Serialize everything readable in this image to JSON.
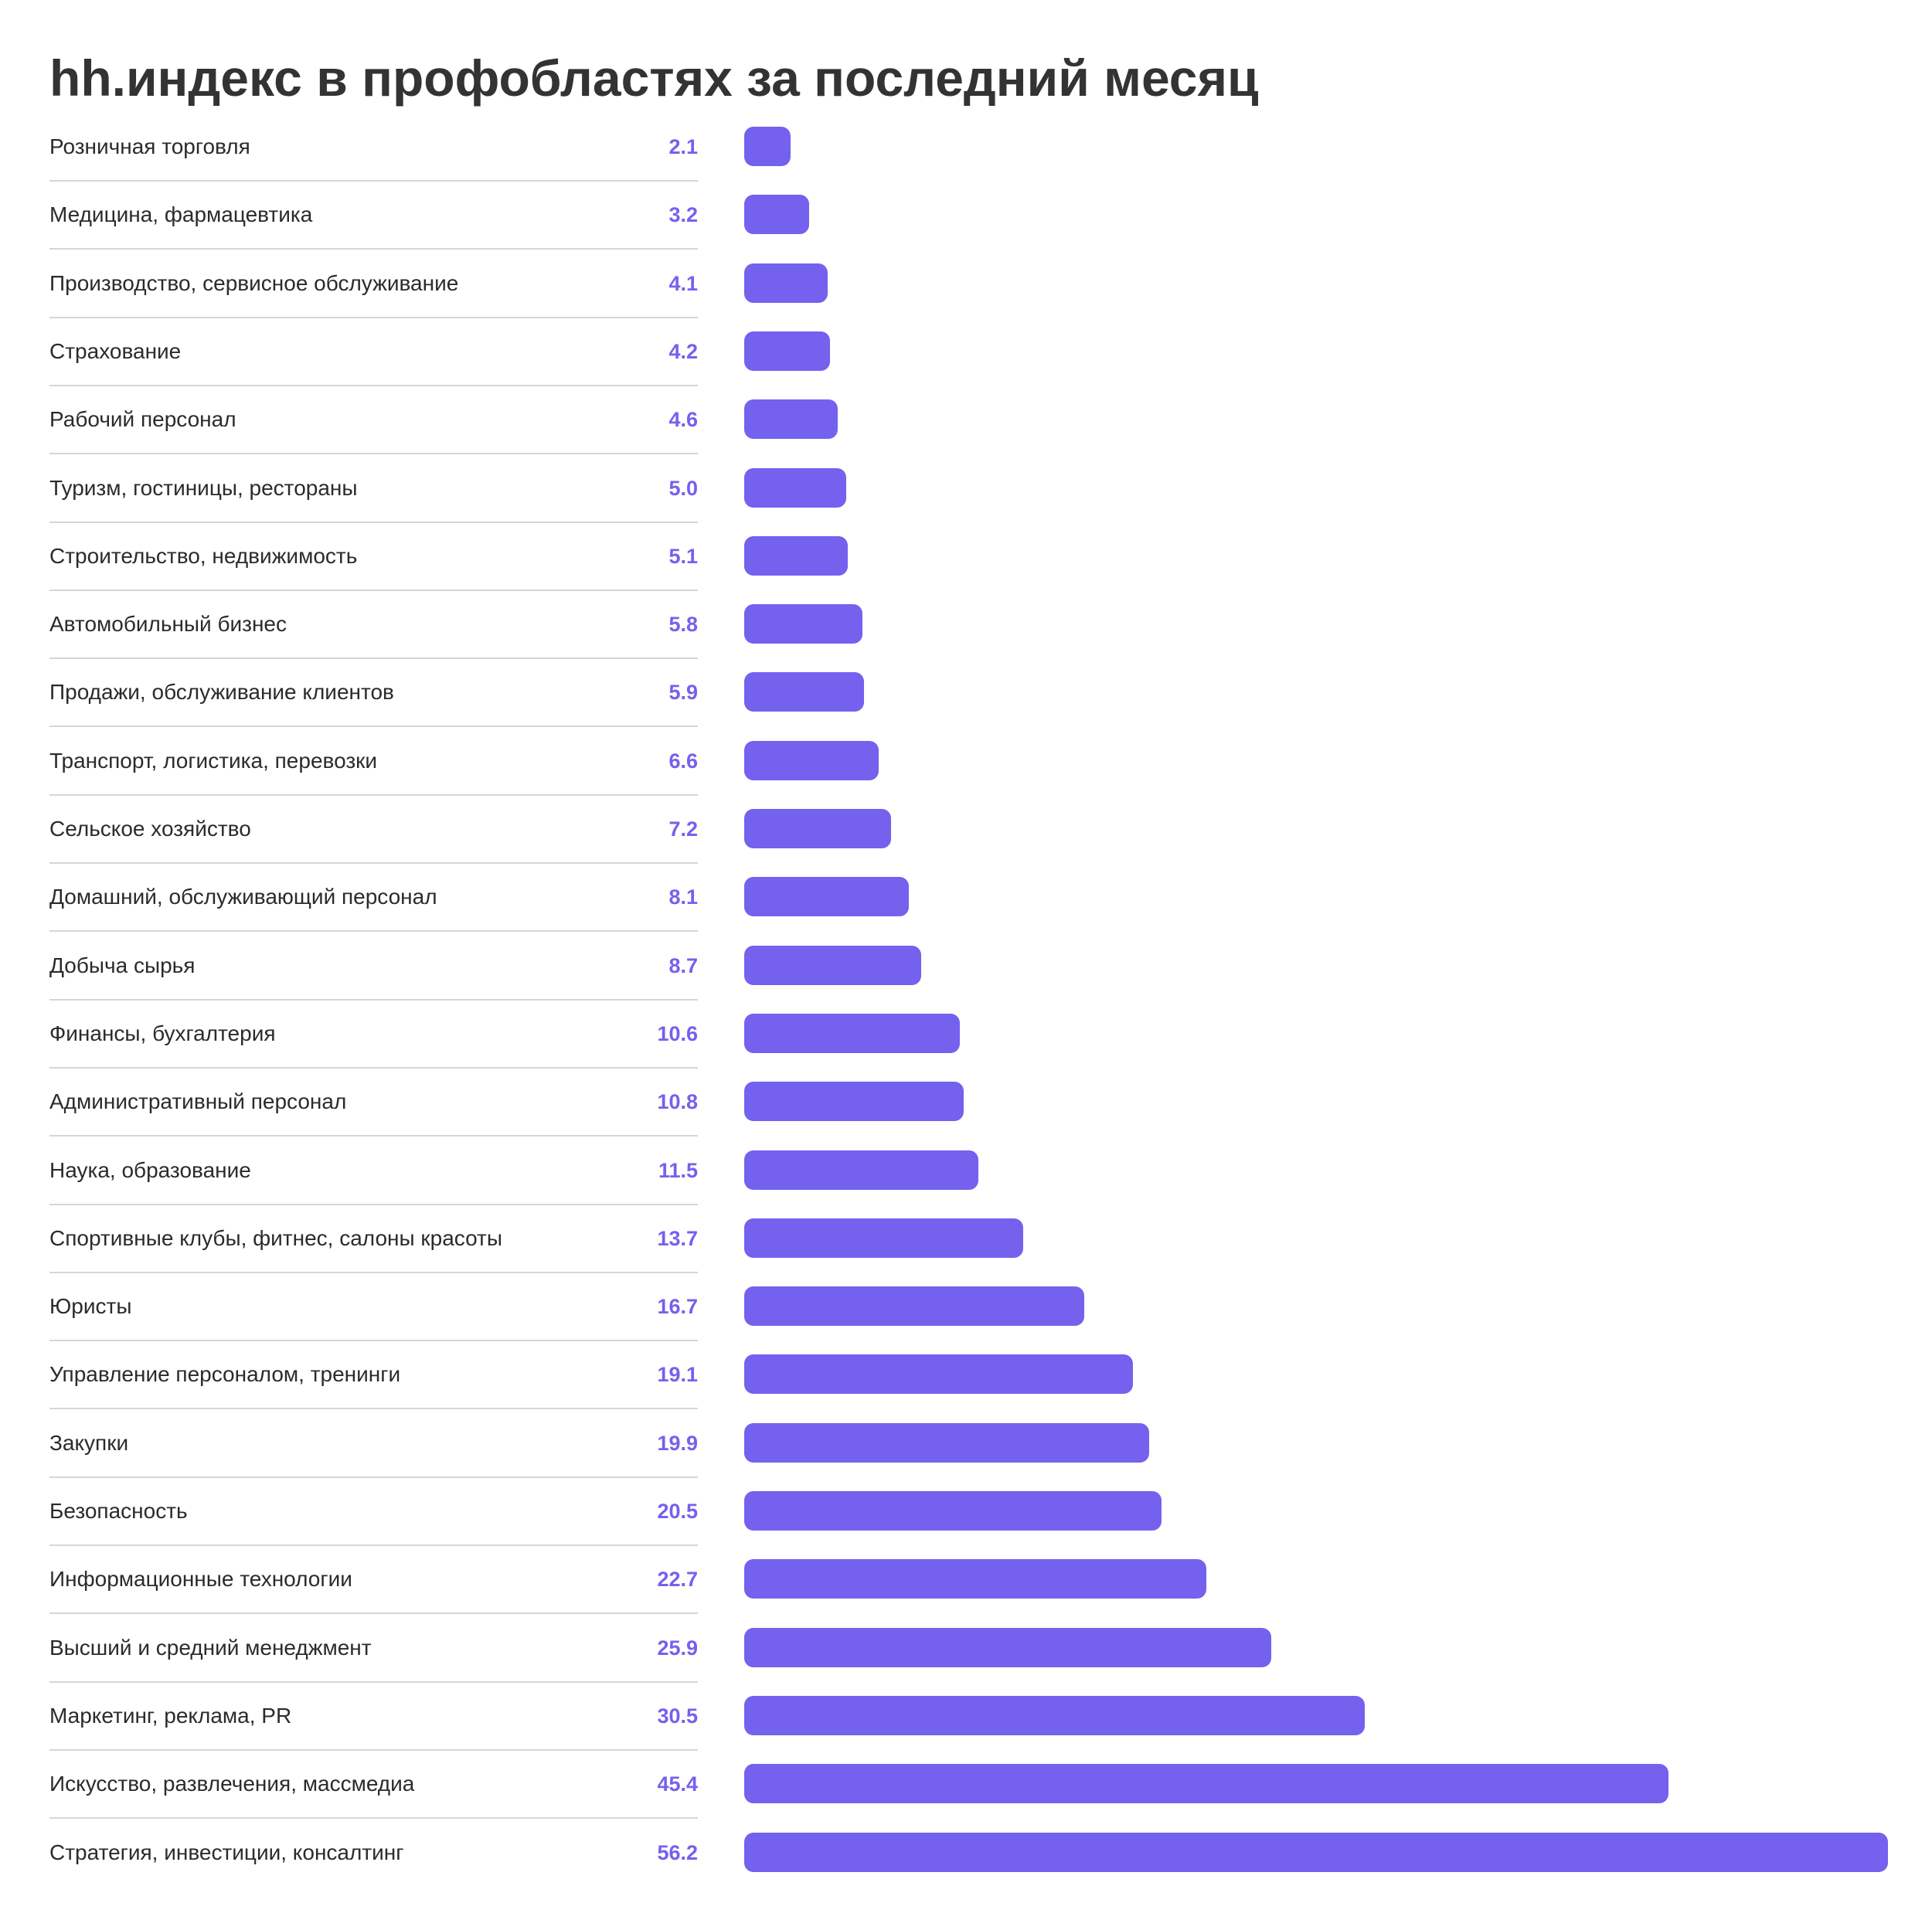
{
  "chart_data": {
    "type": "bar",
    "orientation": "horizontal",
    "title": "hh.индекс в профобластях за последний месяц",
    "bar_color": "#7461EE",
    "value_color": "#7461EE",
    "grid": false,
    "xlim": [
      0,
      56.2
    ],
    "categories": [
      "Розничная торговля",
      "Медицина, фармацевтика",
      "Производство, сервисное обслуживание",
      "Страхование",
      "Рабочий персонал",
      "Туризм, гостиницы, рестораны",
      "Строительство, недвижимость",
      "Автомобильный бизнес",
      "Продажи, обслуживание клиентов",
      "Транспорт, логистика, перевозки",
      "Сельское хозяйство",
      "Домашний, обслуживающий персонал",
      "Добыча сырья",
      "Финансы, бухгалтерия",
      "Административный персонал",
      "Наука, образование",
      "Спортивные клубы, фитнес, салоны красоты",
      "Юристы",
      "Управление персоналом, тренинги",
      "Закупки",
      "Безопасность",
      "Информационные технологии",
      "Высший и средний менеджмент",
      "Маркетинг, реклама, PR",
      "Искусство, развлечения, массмедиа",
      "Стратегия, инвестиции, консалтинг"
    ],
    "values": [
      2.1,
      3.2,
      4.1,
      4.2,
      4.6,
      5.0,
      5.1,
      5.8,
      5.9,
      6.6,
      7.2,
      8.1,
      8.7,
      10.6,
      10.8,
      11.5,
      13.7,
      16.7,
      19.1,
      19.9,
      20.5,
      22.7,
      25.9,
      30.5,
      45.4,
      56.2
    ],
    "value_labels": [
      "2.1",
      "3.2",
      "4.1",
      "4.2",
      "4.6",
      "5.0",
      "5.1",
      "5.8",
      "5.9",
      "6.6",
      "7.2",
      "8.1",
      "8.7",
      "10.6",
      "10.8",
      "11.5",
      "13.7",
      "16.7",
      "19.1",
      "19.9",
      "20.5",
      "22.7",
      "25.9",
      "30.5",
      "45.4",
      "56.2"
    ]
  }
}
